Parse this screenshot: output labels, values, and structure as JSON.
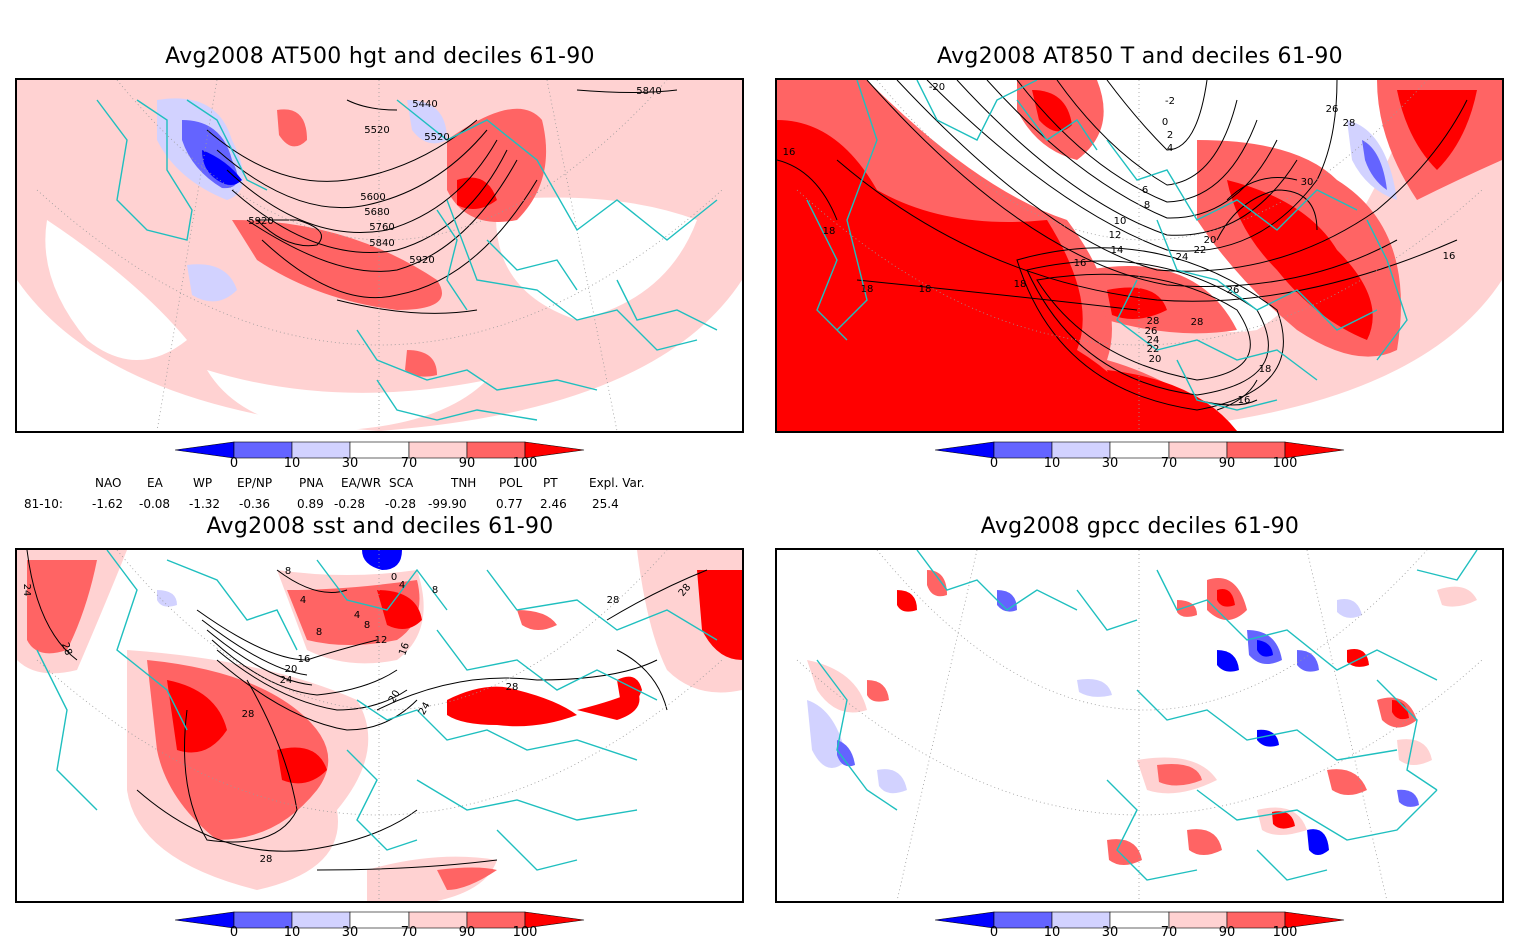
{
  "panels": [
    {
      "title": "Avg2008 AT500 hgt and deciles 61-90",
      "contour_labels": [
        "5440",
        "5520",
        "5520",
        "5600",
        "5680",
        "5760",
        "5840",
        "5920",
        "5920",
        "5840"
      ]
    },
    {
      "title": "Avg2008 AT850 T and deciles 61-90",
      "contour_labels": [
        "-20",
        "-2",
        "0",
        "2",
        "4",
        "6",
        "8",
        "10",
        "12",
        "14",
        "16",
        "18",
        "18",
        "18",
        "18",
        "16",
        "20",
        "22",
        "24",
        "26",
        "28",
        "30",
        "26",
        "28",
        "28",
        "26",
        "24",
        "22",
        "20",
        "18",
        "16",
        "16"
      ]
    },
    {
      "title": "Avg2008 sst and deciles 61-90",
      "contour_labels": [
        "24",
        "28",
        "8",
        "4",
        "4",
        "8",
        "8",
        "12",
        "16",
        "20",
        "24",
        "28",
        "20",
        "24",
        "28",
        "28",
        "28",
        "28",
        "16",
        "0",
        "4",
        "8"
      ]
    },
    {
      "title": "Avg2008 gpcc deciles 61-90",
      "contour_labels": []
    }
  ],
  "colorbar": {
    "ticks": [
      "0",
      "10",
      "30",
      "70",
      "90",
      "100"
    ],
    "colors": [
      "#0000ff",
      "#6464ff",
      "#d2d2ff",
      "#ffffff",
      "#ffd2d2",
      "#ff6464",
      "#ff0000"
    ]
  },
  "indices": {
    "headers": [
      "NAO",
      "EA",
      "WP",
      "EP/NP",
      "PNA",
      "EA/WR",
      "SCA",
      "TNH",
      "POL",
      "PT",
      "Expl. Var."
    ],
    "row_label": "81-10:",
    "values": [
      "-1.62",
      "-0.08",
      "-1.32",
      "-0.36",
      "0.89",
      "-0.28",
      "-0.28",
      "-99.90",
      "0.77",
      "2.46",
      "25.4"
    ]
  }
}
